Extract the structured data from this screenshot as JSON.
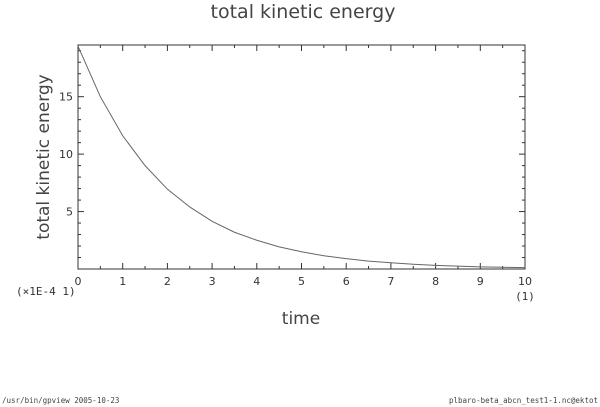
{
  "chart_data": {
    "type": "line",
    "title": "total kinetic energy",
    "xlabel": "time",
    "ylabel": "total kinetic energy",
    "x_unit_label": "(1)",
    "y_scale_label": "(×1E-4 1)",
    "xlim": [
      0,
      10
    ],
    "ylim": [
      0,
      19.5
    ],
    "x_ticks": [
      0,
      1,
      2,
      3,
      4,
      5,
      6,
      7,
      8,
      9,
      10
    ],
    "y_ticks": [
      5,
      10,
      15
    ],
    "grid": false,
    "series": [
      {
        "x": [
          0,
          0.5,
          1,
          1.5,
          2,
          2.5,
          3,
          3.5,
          4,
          4.5,
          5,
          5.5,
          6,
          6.5,
          7,
          7.5,
          8,
          8.5,
          9,
          9.5,
          10
        ],
        "values": [
          19.4,
          15.0,
          11.6,
          9.0,
          6.95,
          5.4,
          4.15,
          3.2,
          2.5,
          1.93,
          1.5,
          1.15,
          0.9,
          0.69,
          0.54,
          0.41,
          0.32,
          0.25,
          0.19,
          0.15,
          0.12
        ]
      }
    ]
  },
  "footer": {
    "left": "/usr/bin/gpview  2005-10-23",
    "right": "plbaro-beta_abcn_test1-1.nc@ektot"
  },
  "colors": {
    "line": "#666666",
    "frame": "#333333"
  }
}
